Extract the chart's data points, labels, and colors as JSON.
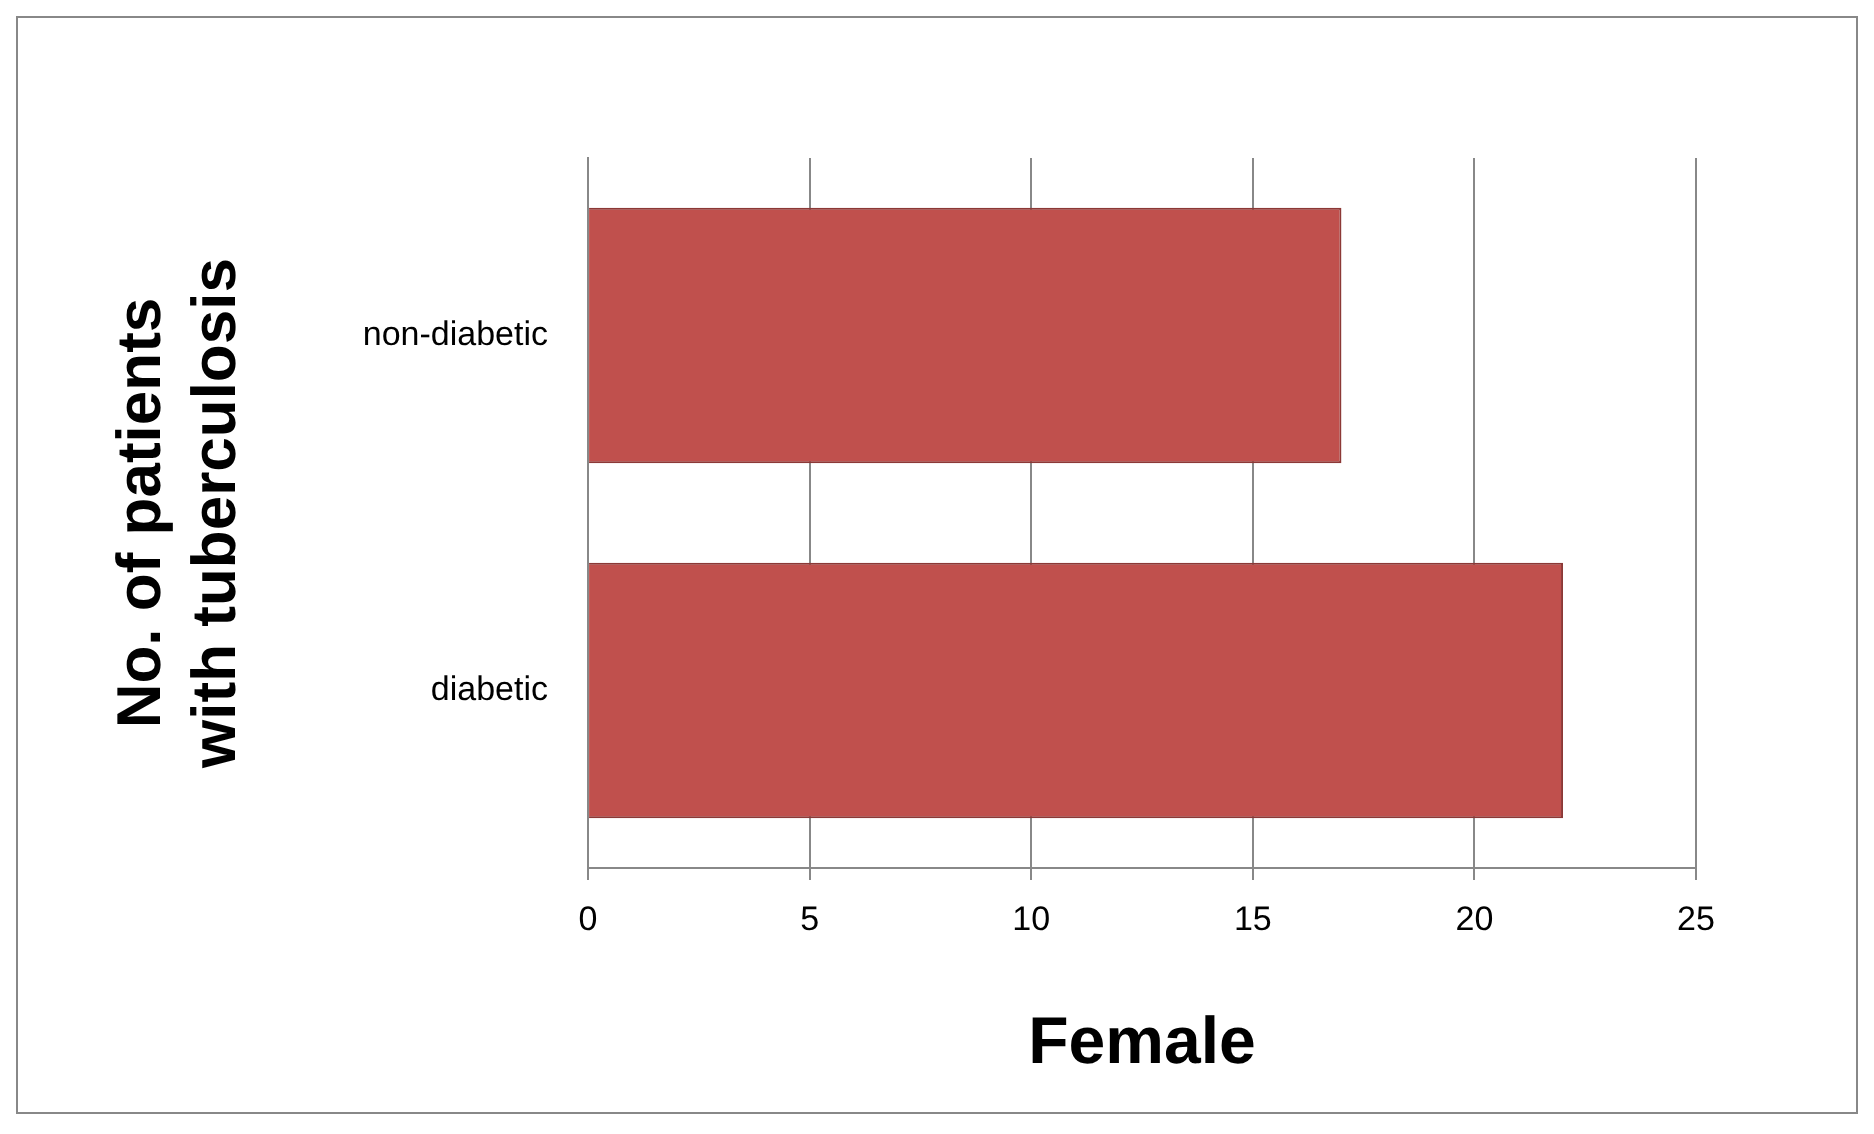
{
  "chart_data": {
    "type": "bar",
    "orientation": "horizontal",
    "categories": [
      "non-diabetic",
      "diabetic"
    ],
    "values": [
      17,
      22
    ],
    "color": "#c0504d",
    "xlim": [
      0,
      25
    ],
    "xticks": [
      0,
      5,
      10,
      15,
      20,
      25
    ],
    "grid": "x",
    "xlabel": "Female",
    "ylabel": "No. of patients with tuberculosis"
  }
}
